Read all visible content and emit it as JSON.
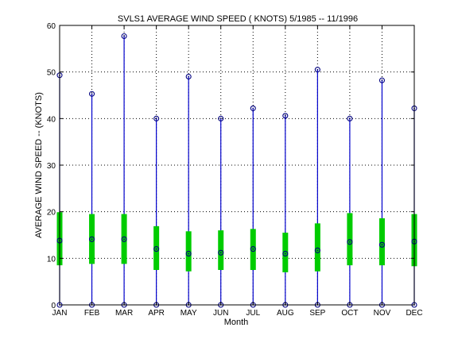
{
  "chart_data": {
    "type": "box",
    "title": "SVLS1  AVERAGE WIND SPEED ( KNOTS) 5/1985 -- 11/1996",
    "xlabel": "Month",
    "ylabel": "AVERAGE WIND SPEED -- (KNOTS)",
    "ylim": [
      0,
      60
    ],
    "yticks": [
      0,
      10,
      20,
      30,
      40,
      50,
      60
    ],
    "grid": true,
    "categories": [
      "JAN",
      "FEB",
      "MAR",
      "APR",
      "MAY",
      "JUN",
      "JUL",
      "AUG",
      "SEP",
      "OCT",
      "NOV",
      "DEC"
    ],
    "min": [
      0,
      0,
      0,
      0,
      0,
      0,
      0,
      0,
      0,
      0,
      0,
      0
    ],
    "max": [
      49.3,
      45.3,
      57.7,
      40.0,
      49.0,
      40.0,
      42.2,
      40.6,
      50.5,
      40.0,
      48.2,
      42.2
    ],
    "q1": [
      8.5,
      8.8,
      8.8,
      7.5,
      7.2,
      7.5,
      7.5,
      7.0,
      7.2,
      8.5,
      8.5,
      8.3
    ],
    "q3": [
      19.9,
      19.5,
      19.5,
      16.9,
      15.8,
      16.0,
      16.3,
      15.5,
      17.5,
      19.7,
      18.6,
      19.5
    ],
    "median": [
      13.8,
      14.1,
      14.1,
      12.0,
      11.0,
      11.2,
      12.0,
      11.0,
      11.7,
      13.5,
      12.9,
      13.6
    ],
    "colors": {
      "whisker": "#0000cc",
      "box": "#00cc00",
      "marker": "#000080",
      "axis": "#000000",
      "grid": "#000000"
    }
  }
}
